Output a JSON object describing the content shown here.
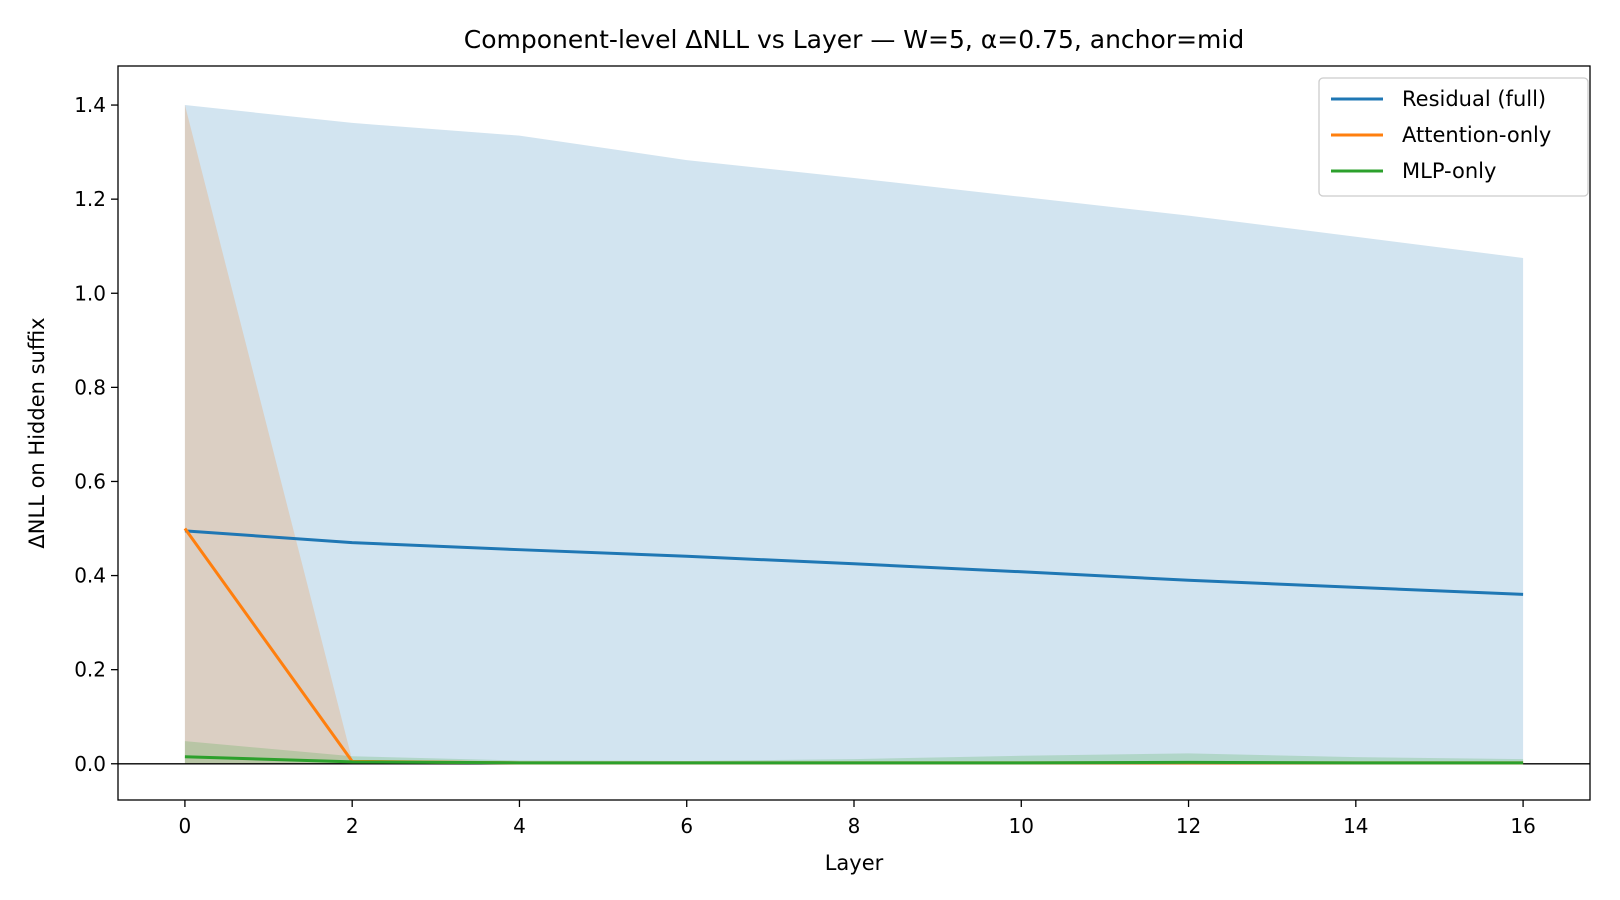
{
  "chart_data": {
    "type": "line",
    "title": "Component-level ΔNLL vs Layer — W=5, α=0.75, anchor=mid",
    "xlabel": "Layer",
    "ylabel": "ΔNLL on Hidden suffix",
    "xlim": [
      -0.8,
      16.8
    ],
    "ylim": [
      -0.077,
      1.483
    ],
    "xticks": [
      0,
      2,
      4,
      6,
      8,
      10,
      12,
      14,
      16
    ],
    "yticks": [
      0.0,
      0.2,
      0.4,
      0.6,
      0.8,
      1.0,
      1.2,
      1.4
    ],
    "ytick_labels": [
      "0.0",
      "0.2",
      "0.4",
      "0.6",
      "0.8",
      "1.0",
      "1.2",
      "1.4"
    ],
    "zero_line": 0,
    "grid": false,
    "legend_position": "top-right",
    "series": [
      {
        "name": "Residual (full)",
        "color": "#1f77b4",
        "x": [
          0,
          2,
          4,
          6,
          8,
          10,
          12,
          14,
          16
        ],
        "values": [
          0.495,
          0.47,
          0.455,
          0.441,
          0.425,
          0.408,
          0.39,
          0.375,
          0.36
        ],
        "band_low": [
          0.0,
          0.0,
          0.0,
          0.0,
          0.0,
          0.0,
          0.0,
          0.0,
          0.0
        ],
        "band_high": [
          1.4,
          1.362,
          1.335,
          1.283,
          1.245,
          1.205,
          1.165,
          1.12,
          1.075
        ]
      },
      {
        "name": "Attention-only",
        "color": "#ff7f0e",
        "x": [
          0,
          2,
          4,
          6,
          8,
          10,
          12,
          14,
          16
        ],
        "values": [
          0.5,
          0.005,
          0.002,
          0.002,
          0.002,
          0.002,
          0.002,
          0.002,
          0.002
        ],
        "band_low": [
          0.0,
          0.0,
          0.0,
          0.0,
          0.0,
          0.0,
          0.0,
          0.0,
          0.0
        ],
        "band_high": [
          1.4,
          0.008,
          0.004,
          0.004,
          0.004,
          0.004,
          0.004,
          0.004,
          0.004
        ]
      },
      {
        "name": "MLP-only",
        "color": "#2ca02c",
        "x": [
          0,
          2,
          4,
          6,
          8,
          10,
          12,
          14,
          16
        ],
        "values": [
          0.015,
          0.004,
          0.002,
          0.002,
          0.002,
          0.002,
          0.003,
          0.002,
          0.002
        ],
        "band_low": [
          0.0,
          0.0,
          0.0,
          0.0,
          0.0,
          0.0,
          0.0,
          0.0,
          0.0
        ],
        "band_high": [
          0.048,
          0.016,
          0.007,
          0.006,
          0.01,
          0.017,
          0.022,
          0.014,
          0.01
        ]
      }
    ]
  }
}
